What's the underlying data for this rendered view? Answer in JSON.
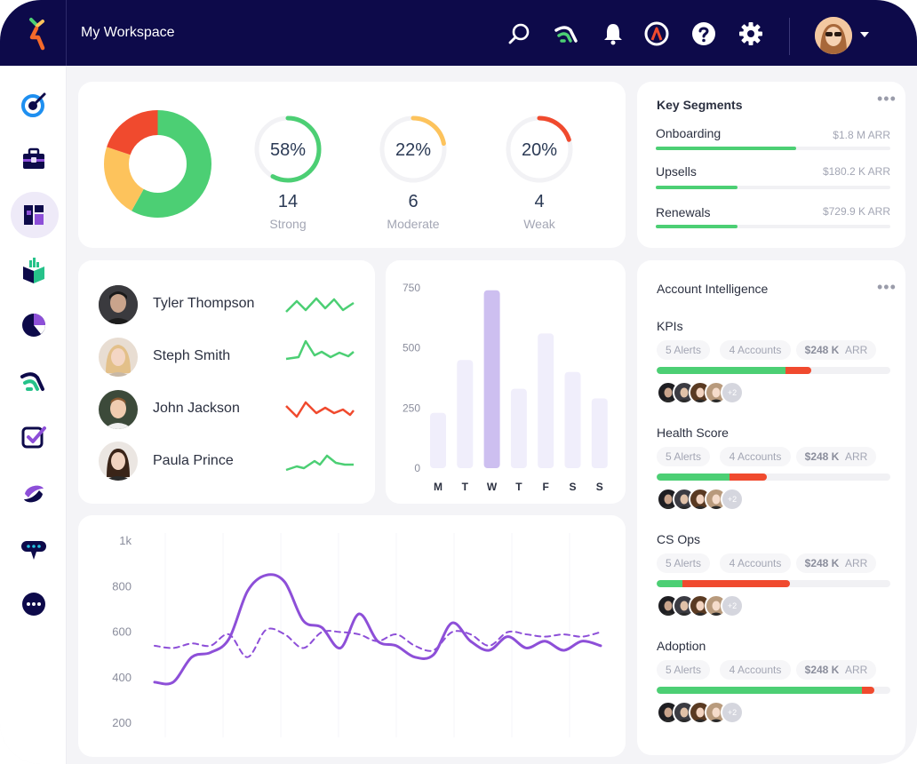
{
  "header": {
    "workspace": "My Workspace",
    "icons": [
      "search-icon",
      "analytics-icon",
      "bell-icon",
      "alert-logo-icon",
      "help-icon",
      "settings-icon"
    ]
  },
  "sidebar": {
    "items": [
      "target-icon",
      "briefcase-icon",
      "dashboard-icon",
      "box-chart-icon",
      "pie-icon",
      "analytics-icon",
      "checklist-icon",
      "flow-icon",
      "chat-icon",
      "more-icon"
    ],
    "active": "dashboard-icon"
  },
  "health_summary": {
    "donut": [
      {
        "name": "Strong",
        "percent": 58,
        "color": "#4ccf74"
      },
      {
        "name": "Moderate",
        "percent": 22,
        "color": "#fdc35c"
      },
      {
        "name": "Weak",
        "percent": 20,
        "color": "#f04a2e"
      }
    ],
    "tiles": [
      {
        "pct": "58%",
        "count": "14",
        "label": "Strong",
        "value": 58,
        "color": "#4ccf74"
      },
      {
        "pct": "22%",
        "count": "6",
        "label": "Moderate",
        "value": 22,
        "color": "#fdc35c"
      },
      {
        "pct": "20%",
        "count": "4",
        "label": "Weak",
        "value": 20,
        "color": "#f04a2e"
      }
    ]
  },
  "key_segments": {
    "title": "Key Segments",
    "items": [
      {
        "name": "Onboarding",
        "arr": "$1.8 M ARR",
        "fill": 0.6
      },
      {
        "name": "Upsells",
        "arr": "$180.2 K ARR",
        "fill": 0.35
      },
      {
        "name": "Renewals",
        "arr": "$729.9 K ARR",
        "fill": 0.35
      }
    ]
  },
  "people": [
    {
      "name": "Tyler Thompson",
      "trend": "positive",
      "color": "#4ccf74"
    },
    {
      "name": "Steph Smith",
      "trend": "positive",
      "color": "#4ccf74"
    },
    {
      "name": "John Jackson",
      "trend": "negative",
      "color": "#f04a2e"
    },
    {
      "name": "Paula Prince",
      "trend": "positive",
      "color": "#4ccf74"
    }
  ],
  "chart_data": [
    {
      "type": "bar",
      "categories": [
        "M",
        "T",
        "W",
        "T",
        "F",
        "S",
        "S"
      ],
      "values": [
        230,
        450,
        740,
        330,
        560,
        400,
        290
      ],
      "y_ticks": [
        "750",
        "500",
        "250",
        "0"
      ],
      "ylim": [
        0,
        750
      ],
      "highlight_index": 2,
      "colors": {
        "bar": "#f0eefb",
        "highlight": "#cdbff0"
      }
    },
    {
      "type": "line",
      "x": [
        0,
        1,
        2,
        3,
        4,
        5,
        6,
        7,
        8,
        9,
        10,
        11,
        12,
        13,
        14,
        15,
        16,
        17,
        18,
        19,
        20,
        21,
        22,
        23,
        24
      ],
      "y_ticks": [
        "1k",
        "800",
        "600",
        "400",
        "200"
      ],
      "ylim": [
        200,
        1000
      ],
      "series": [
        {
          "values": [
            380,
            380,
            490,
            510,
            570,
            780,
            850,
            820,
            650,
            620,
            530,
            680,
            560,
            540,
            490,
            500,
            640,
            560,
            520,
            580,
            530,
            560,
            520,
            560,
            540
          ],
          "color": "#8d4fd8",
          "style": "solid"
        },
        {
          "values": [
            540,
            530,
            550,
            540,
            590,
            490,
            610,
            590,
            530,
            600,
            600,
            590,
            560,
            590,
            540,
            520,
            600,
            590,
            540,
            600,
            590,
            580,
            590,
            580,
            600
          ],
          "color": "#8d4fd8",
          "style": "dashed"
        }
      ]
    }
  ],
  "account_intelligence": {
    "title": "Account Intelligence",
    "sections": [
      {
        "name": "KPIs",
        "alerts": "5 Alerts",
        "accounts": "4 Accounts",
        "arr_value": "$248 K",
        "arr_unit": "ARR",
        "green": 0.55,
        "red": 0.11,
        "more": "+2"
      },
      {
        "name": "Health Score",
        "alerts": "5 Alerts",
        "accounts": "4 Accounts",
        "arr_value": "$248 K",
        "arr_unit": "ARR",
        "green": 0.31,
        "red": 0.16,
        "more": "+2"
      },
      {
        "name": "CS Ops",
        "alerts": "5 Alerts",
        "accounts": "4 Accounts",
        "arr_value": "$248 K",
        "arr_unit": "ARR",
        "green": 0.11,
        "red": 0.46,
        "more": "+2"
      },
      {
        "name": "Adoption",
        "alerts": "5 Alerts",
        "accounts": "4 Accounts",
        "arr_value": "$248 K",
        "arr_unit": "ARR",
        "green": 0.88,
        "red": 0.05,
        "more": "+2"
      }
    ]
  }
}
